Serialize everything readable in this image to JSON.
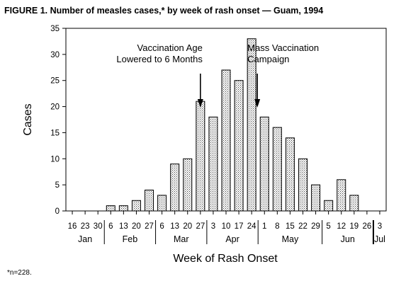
{
  "chart_data": {
    "type": "bar",
    "title": "FIGURE 1. Number of measles cases,* by week of rash onset — Guam, 1994",
    "xlabel": "Week of Rash Onset",
    "ylabel": "Cases",
    "ylim": [
      0,
      35
    ],
    "y_ticks": [
      "0",
      "5",
      "10",
      "15",
      "20",
      "25",
      "30",
      "35"
    ],
    "categories": [
      "16",
      "23",
      "30",
      "6",
      "13",
      "20",
      "27",
      "6",
      "13",
      "20",
      "27",
      "3",
      "10",
      "17",
      "24",
      "1",
      "8",
      "15",
      "22",
      "29",
      "5",
      "12",
      "19",
      "26",
      "3"
    ],
    "values": [
      0,
      0,
      0,
      1,
      1,
      2,
      4,
      3,
      9,
      10,
      21,
      18,
      27,
      25,
      33,
      18,
      16,
      14,
      10,
      5,
      2,
      6,
      3,
      0,
      0
    ],
    "months": [
      {
        "label": "Jan",
        "weeks": 3
      },
      {
        "label": "Feb",
        "weeks": 4
      },
      {
        "label": "Mar",
        "weeks": 4
      },
      {
        "label": "Apr",
        "weeks": 4
      },
      {
        "label": "May",
        "weeks": 5
      },
      {
        "label": "Jun",
        "weeks": 4
      },
      {
        "label": "Jul",
        "weeks": 1
      }
    ],
    "annotations": [
      {
        "lines": [
          "Vaccination Age",
          "Lowered to 6 Months"
        ],
        "week_index": 10
      },
      {
        "lines": [
          "Mass Vaccination",
          "Campaign"
        ],
        "week_index": 14
      }
    ],
    "bar_fill": "#c8c8c8",
    "grid": false
  },
  "footnote": "*n=228."
}
